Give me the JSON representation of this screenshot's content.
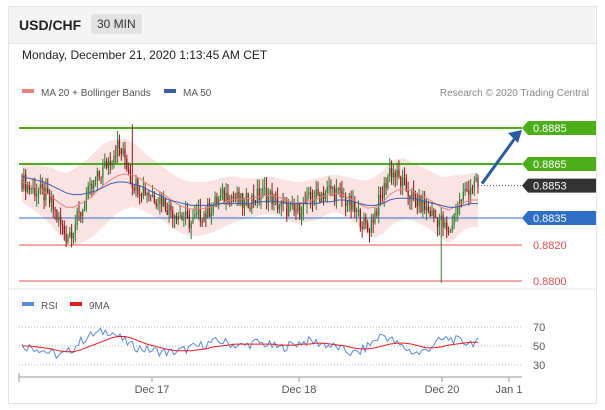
{
  "header": {
    "symbol": "USD/CHF",
    "timeframe": "30 MIN"
  },
  "datetime": "Monday, December 21, 2020 1:13:45 AM CET",
  "legend": {
    "ma20_label": "MA 20 + Bollinger Bands",
    "ma50_label": "MA 50",
    "credit": "Research © 2020 Trading Central",
    "rsi_label": "RSI",
    "ma9_label": "9MA"
  },
  "colors": {
    "up": "#2e7d32",
    "down": "#8b1a1a",
    "bollinger_fill": "#fbd9d9",
    "ma20": "#e88080",
    "ma50": "#3a5da8",
    "resistance": "#4caf1a",
    "support_red": "#e05050",
    "pivot": "#2f6ec7",
    "last": "#333333",
    "rsi": "#5b8ad8",
    "rsi_ma": "#e02020",
    "arrow": "#2c5aa0"
  },
  "chart_data": [
    {
      "type": "candlestick",
      "title": "",
      "x_ticks": [
        "Dec 17",
        "Dec 18",
        "Dec 20",
        "Jan 1"
      ],
      "ylim": [
        0.8795,
        0.8895
      ],
      "levels": [
        {
          "value": 0.8885,
          "label": "0.8885",
          "kind": "resistance"
        },
        {
          "value": 0.8865,
          "label": "0.8865",
          "kind": "resistance"
        },
        {
          "value": 0.8853,
          "label": "0.8853",
          "kind": "last"
        },
        {
          "value": 0.8835,
          "label": "0.8835",
          "kind": "pivot"
        },
        {
          "value": 0.882,
          "label": "0.8820",
          "kind": "support"
        },
        {
          "value": 0.88,
          "label": "0.8800",
          "kind": "support"
        }
      ],
      "close_path": [
        0.8856,
        0.8852,
        0.885,
        0.8848,
        0.8843,
        0.8833,
        0.8825,
        0.883,
        0.8838,
        0.8848,
        0.8855,
        0.8862,
        0.8868,
        0.8875,
        0.8868,
        0.8855,
        0.8852,
        0.885,
        0.8847,
        0.8845,
        0.884,
        0.8838,
        0.8835,
        0.8832,
        0.8836,
        0.8838,
        0.8842,
        0.8846,
        0.8848,
        0.8846,
        0.8843,
        0.8845,
        0.8847,
        0.8849,
        0.8846,
        0.8842,
        0.884,
        0.8838,
        0.8841,
        0.8845,
        0.8847,
        0.8849,
        0.8851,
        0.8848,
        0.8845,
        0.884,
        0.8835,
        0.8828,
        0.8838,
        0.8848,
        0.8862,
        0.8858,
        0.8852,
        0.8847,
        0.8843,
        0.884,
        0.8836,
        0.8833,
        0.8825,
        0.884,
        0.8848,
        0.8853,
        0.8853
      ],
      "bollinger_upper": [
        0.8866,
        0.8866,
        0.8865,
        0.8864,
        0.8863,
        0.8861,
        0.886,
        0.8862,
        0.8865,
        0.8868,
        0.8872,
        0.8876,
        0.8878,
        0.8879,
        0.8879,
        0.8877,
        0.8874,
        0.887,
        0.8867,
        0.8864,
        0.8861,
        0.8858,
        0.8856,
        0.8855,
        0.8855,
        0.8855,
        0.8856,
        0.8857,
        0.8858,
        0.8858,
        0.8857,
        0.8857,
        0.8857,
        0.8858,
        0.8858,
        0.8857,
        0.8856,
        0.8855,
        0.8855,
        0.8856,
        0.8857,
        0.8858,
        0.8859,
        0.8859,
        0.8858,
        0.8857,
        0.8856,
        0.8856,
        0.8858,
        0.8861,
        0.8866,
        0.8868,
        0.8868,
        0.8866,
        0.8864,
        0.8862,
        0.886,
        0.8858,
        0.8858,
        0.8859,
        0.8859,
        0.886,
        0.886
      ],
      "bollinger_lower": [
        0.8844,
        0.8841,
        0.8838,
        0.8835,
        0.8831,
        0.8826,
        0.8822,
        0.882,
        0.8821,
        0.8823,
        0.8826,
        0.883,
        0.8834,
        0.8838,
        0.884,
        0.8841,
        0.884,
        0.8838,
        0.8836,
        0.8834,
        0.8831,
        0.8828,
        0.8826,
        0.8825,
        0.8825,
        0.8826,
        0.8827,
        0.8829,
        0.8831,
        0.8833,
        0.8834,
        0.8835,
        0.8836,
        0.8837,
        0.8837,
        0.8836,
        0.8834,
        0.8832,
        0.8832,
        0.8833,
        0.8834,
        0.8836,
        0.8838,
        0.8838,
        0.8836,
        0.8833,
        0.8829,
        0.8825,
        0.8824,
        0.8826,
        0.883,
        0.8833,
        0.8834,
        0.8834,
        0.8832,
        0.883,
        0.8827,
        0.8824,
        0.8821,
        0.8824,
        0.8828,
        0.883,
        0.883
      ],
      "ma50": [
        0.8858,
        0.8857,
        0.8856,
        0.8855,
        0.8853,
        0.8851,
        0.8849,
        0.8848,
        0.8848,
        0.8849,
        0.885,
        0.8852,
        0.8854,
        0.8855,
        0.8855,
        0.8854,
        0.8853,
        0.8851,
        0.8849,
        0.8847,
        0.8845,
        0.8844,
        0.8843,
        0.8842,
        0.8842,
        0.8842,
        0.8842,
        0.8843,
        0.8843,
        0.8843,
        0.8843,
        0.8843,
        0.8844,
        0.8844,
        0.8844,
        0.8844,
        0.8843,
        0.8843,
        0.8843,
        0.8843,
        0.8843,
        0.8844,
        0.8844,
        0.8845,
        0.8845,
        0.8844,
        0.8843,
        0.8842,
        0.8842,
        0.8843,
        0.8845,
        0.8846,
        0.8846,
        0.8846,
        0.8845,
        0.8844,
        0.8843,
        0.8842,
        0.8841,
        0.8841,
        0.8842,
        0.8843,
        0.8843
      ],
      "spikes": [
        {
          "bar": 15,
          "high": 0.8887
        },
        {
          "bar": 57,
          "low": 0.8799
        }
      ],
      "arrow_target": 0.8885
    },
    {
      "type": "line",
      "ylim": [
        20,
        80
      ],
      "y_ticks": [
        "70",
        "50",
        "30"
      ],
      "series": [
        {
          "name": "RSI",
          "values": [
            50,
            49,
            48,
            45,
            42,
            40,
            42,
            48,
            55,
            60,
            63,
            65,
            66,
            60,
            55,
            50,
            48,
            46,
            45,
            44,
            43,
            44,
            46,
            48,
            50,
            52,
            54,
            55,
            53,
            51,
            50,
            52,
            54,
            52,
            50,
            48,
            50,
            52,
            54,
            55,
            54,
            52,
            50,
            48,
            45,
            42,
            44,
            50,
            56,
            62,
            58,
            52,
            48,
            44,
            42,
            46,
            52,
            56,
            58,
            56,
            54,
            54,
            54
          ]
        },
        {
          "name": "9MA",
          "values": [
            50,
            50,
            49,
            48,
            47,
            45,
            44,
            44,
            46,
            49,
            52,
            55,
            58,
            60,
            60,
            58,
            55,
            52,
            50,
            48,
            46,
            45,
            45,
            45,
            46,
            47,
            49,
            50,
            51,
            52,
            52,
            52,
            52,
            52,
            52,
            51,
            51,
            51,
            52,
            52,
            53,
            53,
            52,
            51,
            50,
            48,
            47,
            47,
            48,
            50,
            52,
            53,
            53,
            52,
            50,
            48,
            48,
            49,
            51,
            52,
            53,
            54,
            54
          ]
        }
      ]
    }
  ]
}
